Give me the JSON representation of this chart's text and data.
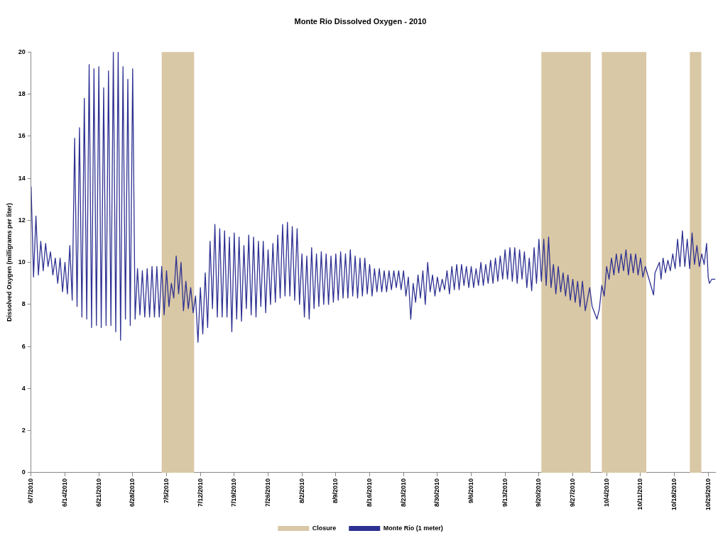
{
  "chart_data": {
    "type": "line",
    "title": "Monte Rio Dissolved Oxygen - 2010",
    "ylabel": "Dissolved Oxygen (milligrams per liter)",
    "xlim": [
      "2010-06-07",
      "2010-10-26T12:00"
    ],
    "xticks": [
      {
        "value": "2010-06-07",
        "label": "6/7/2010"
      },
      {
        "value": "2010-06-14",
        "label": "6/14/2010"
      },
      {
        "value": "2010-06-21",
        "label": "6/21/2010"
      },
      {
        "value": "2010-06-28",
        "label": "6/28/2010"
      },
      {
        "value": "2010-07-05",
        "label": "7/5/2010"
      },
      {
        "value": "2010-07-12",
        "label": "7/12/2010"
      },
      {
        "value": "2010-07-19",
        "label": "7/19/2010"
      },
      {
        "value": "2010-07-26",
        "label": "7/26/2010"
      },
      {
        "value": "2010-08-02",
        "label": "8/2/2010"
      },
      {
        "value": "2010-08-09",
        "label": "8/9/2010"
      },
      {
        "value": "2010-08-16",
        "label": "8/16/2010"
      },
      {
        "value": "2010-08-23",
        "label": "8/23/2010"
      },
      {
        "value": "2010-08-30",
        "label": "8/30/2010"
      },
      {
        "value": "2010-09-06",
        "label": "9/6/2010"
      },
      {
        "value": "2010-09-13",
        "label": "9/13/2010"
      },
      {
        "value": "2010-09-20",
        "label": "9/20/2010"
      },
      {
        "value": "2010-09-27",
        "label": "9/27/2010"
      },
      {
        "value": "2010-10-04",
        "label": "10/4/2010"
      },
      {
        "value": "2010-10-11",
        "label": "10/11/2010"
      },
      {
        "value": "2010-10-18",
        "label": "10/18/2010"
      },
      {
        "value": "2010-10-25",
        "label": "10/25/2010"
      }
    ],
    "ylim": [
      0,
      20
    ],
    "yticks": [
      0,
      2,
      4,
      6,
      8,
      10,
      12,
      14,
      16,
      18,
      20
    ],
    "grid": false,
    "legend": "bottom",
    "marker": "none",
    "line_style": "solid",
    "bands": [
      {
        "axis": "x",
        "from": "2010-07-04",
        "to": "2010-07-10T17:00",
        "label": "Closure",
        "color": "#d9c8a6"
      },
      {
        "axis": "x",
        "from": "2010-09-20T12:00",
        "to": "2010-09-30T17:00",
        "color": "#d9c8a6"
      },
      {
        "axis": "x",
        "from": "2010-10-03",
        "to": "2010-10-12T05:00",
        "color": "#d9c8a6"
      },
      {
        "axis": "x",
        "from": "2010-10-21T05:00",
        "to": "2010-10-23T14:00",
        "color": "#d9c8a6"
      }
    ],
    "x": [
      "2010-06-07",
      "2010-06-07T12:00",
      "2010-06-08",
      "2010-06-08T12:00",
      "2010-06-09",
      "2010-06-09T12:00",
      "2010-06-10",
      "2010-06-10T12:00",
      "2010-06-11",
      "2010-06-11T12:00",
      "2010-06-12",
      "2010-06-12T12:00",
      "2010-06-13",
      "2010-06-13T12:00",
      "2010-06-14",
      "2010-06-14T12:00",
      "2010-06-15",
      "2010-06-15T12:00",
      "2010-06-16",
      "2010-06-16T12:00",
      "2010-06-17",
      "2010-06-17T12:00",
      "2010-06-18",
      "2010-06-18T12:00",
      "2010-06-19",
      "2010-06-19T12:00",
      "2010-06-20",
      "2010-06-20T12:00",
      "2010-06-21",
      "2010-06-21T12:00",
      "2010-06-22",
      "2010-06-22T12:00",
      "2010-06-23",
      "2010-06-23T12:00",
      "2010-06-24",
      "2010-06-24T12:00",
      "2010-06-25",
      "2010-06-25T12:00",
      "2010-06-26",
      "2010-06-26T12:00",
      "2010-06-27",
      "2010-06-27T12:00",
      "2010-06-28",
      "2010-06-28T12:00",
      "2010-06-29",
      "2010-06-29T12:00",
      "2010-06-30",
      "2010-06-30T12:00",
      "2010-07-01",
      "2010-07-01T12:00",
      "2010-07-02",
      "2010-07-02T12:00",
      "2010-07-03",
      "2010-07-03T12:00",
      "2010-07-04",
      "2010-07-04T12:00",
      "2010-07-05",
      "2010-07-05T12:00",
      "2010-07-06",
      "2010-07-06T12:00",
      "2010-07-07",
      "2010-07-07T12:00",
      "2010-07-08",
      "2010-07-08T12:00",
      "2010-07-09",
      "2010-07-09T12:00",
      "2010-07-10",
      "2010-07-10T12:00",
      "2010-07-11",
      "2010-07-11T12:00",
      "2010-07-12",
      "2010-07-12T12:00",
      "2010-07-13",
      "2010-07-13T12:00",
      "2010-07-14",
      "2010-07-14T12:00",
      "2010-07-15",
      "2010-07-15T12:00",
      "2010-07-16",
      "2010-07-16T12:00",
      "2010-07-17",
      "2010-07-17T12:00",
      "2010-07-18",
      "2010-07-18T12:00",
      "2010-07-19",
      "2010-07-19T12:00",
      "2010-07-20",
      "2010-07-20T12:00",
      "2010-07-21",
      "2010-07-21T12:00",
      "2010-07-22",
      "2010-07-22T12:00",
      "2010-07-23",
      "2010-07-23T12:00",
      "2010-07-24",
      "2010-07-24T12:00",
      "2010-07-25",
      "2010-07-25T12:00",
      "2010-07-26",
      "2010-07-26T12:00",
      "2010-07-27",
      "2010-07-27T12:00",
      "2010-07-28",
      "2010-07-28T12:00",
      "2010-07-29",
      "2010-07-29T12:00",
      "2010-07-30",
      "2010-07-30T12:00",
      "2010-07-31",
      "2010-07-31T12:00",
      "2010-08-01",
      "2010-08-01T12:00",
      "2010-08-02",
      "2010-08-02T12:00",
      "2010-08-03",
      "2010-08-03T12:00",
      "2010-08-04",
      "2010-08-04T12:00",
      "2010-08-05",
      "2010-08-05T12:00",
      "2010-08-06",
      "2010-08-06T12:00",
      "2010-08-07",
      "2010-08-07T12:00",
      "2010-08-08",
      "2010-08-08T12:00",
      "2010-08-09",
      "2010-08-09T12:00",
      "2010-08-10",
      "2010-08-10T12:00",
      "2010-08-11",
      "2010-08-11T12:00",
      "2010-08-12",
      "2010-08-12T12:00",
      "2010-08-13",
      "2010-08-13T12:00",
      "2010-08-14",
      "2010-08-14T12:00",
      "2010-08-15",
      "2010-08-15T12:00",
      "2010-08-16",
      "2010-08-16T12:00",
      "2010-08-17",
      "2010-08-17T12:00",
      "2010-08-18",
      "2010-08-18T12:00",
      "2010-08-19",
      "2010-08-19T12:00",
      "2010-08-20",
      "2010-08-20T12:00",
      "2010-08-21",
      "2010-08-21T12:00",
      "2010-08-22",
      "2010-08-22T12:00",
      "2010-08-23",
      "2010-08-23T12:00",
      "2010-08-24",
      "2010-08-24T12:00",
      "2010-08-25",
      "2010-08-25T12:00",
      "2010-08-26",
      "2010-08-26T12:00",
      "2010-08-27",
      "2010-08-27T12:00",
      "2010-08-28",
      "2010-08-28T12:00",
      "2010-08-29",
      "2010-08-29T12:00",
      "2010-08-30",
      "2010-08-30T12:00",
      "2010-08-31",
      "2010-08-31T12:00",
      "2010-09-01",
      "2010-09-01T12:00",
      "2010-09-02",
      "2010-09-02T12:00",
      "2010-09-03",
      "2010-09-03T12:00",
      "2010-09-04",
      "2010-09-04T12:00",
      "2010-09-05",
      "2010-09-05T12:00",
      "2010-09-06",
      "2010-09-06T12:00",
      "2010-09-07",
      "2010-09-07T12:00",
      "2010-09-08",
      "2010-09-08T12:00",
      "2010-09-09",
      "2010-09-09T12:00",
      "2010-09-10",
      "2010-09-10T12:00",
      "2010-09-11",
      "2010-09-11T12:00",
      "2010-09-12",
      "2010-09-12T12:00",
      "2010-09-13",
      "2010-09-13T12:00",
      "2010-09-14",
      "2010-09-14T12:00",
      "2010-09-15",
      "2010-09-15T12:00",
      "2010-09-16",
      "2010-09-16T12:00",
      "2010-09-17",
      "2010-09-17T12:00",
      "2010-09-18",
      "2010-09-18T12:00",
      "2010-09-19",
      "2010-09-19T12:00",
      "2010-09-20",
      "2010-09-20T12:00",
      "2010-09-21",
      "2010-09-21T12:00",
      "2010-09-22",
      "2010-09-22T12:00",
      "2010-09-23",
      "2010-09-23T12:00",
      "2010-09-24",
      "2010-09-24T12:00",
      "2010-09-25",
      "2010-09-25T12:00",
      "2010-09-26",
      "2010-09-26T12:00",
      "2010-09-27",
      "2010-09-27T12:00",
      "2010-09-28",
      "2010-09-28T12:00",
      "2010-09-29",
      "2010-09-29T14:00",
      "2010-09-30T12:00",
      "2010-10-01",
      "2010-10-02",
      "2010-10-02T12:00",
      "2010-10-03",
      "2010-10-03T12:00",
      "2010-10-04",
      "2010-10-04T12:00",
      "2010-10-05",
      "2010-10-05T12:00",
      "2010-10-06",
      "2010-10-06T12:00",
      "2010-10-07",
      "2010-10-07T12:00",
      "2010-10-08",
      "2010-10-08T12:00",
      "2010-10-09",
      "2010-10-09T12:00",
      "2010-10-10",
      "2010-10-10T12:00",
      "2010-10-11",
      "2010-10-11T12:00",
      "2010-10-12",
      "2010-10-13T17:00",
      "2010-10-14",
      "2010-10-14T22:00",
      "2010-10-15T06:00",
      "2010-10-15T16:00",
      "2010-10-16T04:00",
      "2010-10-16T16:00",
      "2010-10-17T04:00",
      "2010-10-17T16:00",
      "2010-10-18T04:00",
      "2010-10-18T16:00",
      "2010-10-19T04:00",
      "2010-10-19T16:00",
      "2010-10-20T04:00",
      "2010-10-20T16:00",
      "2010-10-21T04:00",
      "2010-10-21T16:00",
      "2010-10-22T04:00",
      "2010-10-22T16:00",
      "2010-10-23T04:00",
      "2010-10-23T16:00",
      "2010-10-24T04:00",
      "2010-10-24T16:00",
      "2010-10-25",
      "2010-10-25T06:00",
      "2010-10-25T18:00",
      "2010-10-26T12:00"
    ],
    "series": [
      {
        "name": "Monte Rio (1 meter)",
        "color": "#2e3192",
        "values": [
          13.6,
          9.3,
          12.2,
          9.4,
          11.0,
          9.6,
          10.9,
          9.8,
          10.5,
          9.4,
          10.2,
          9.0,
          10.2,
          8.6,
          10.0,
          8.5,
          10.8,
          8.2,
          15.9,
          7.9,
          16.4,
          7.4,
          17.8,
          7.3,
          19.4,
          6.9,
          19.2,
          7.0,
          19.3,
          6.9,
          18.3,
          7.0,
          19.1,
          7.0,
          20,
          6.7,
          20,
          6.3,
          19.3,
          7.3,
          18.7,
          7.0,
          19.2,
          7.3,
          9.7,
          7.5,
          9.6,
          7.4,
          9.7,
          7.4,
          9.8,
          7.4,
          9.8,
          7.4,
          9.8,
          7.5,
          9.6,
          7.9,
          9.0,
          8.3,
          10.3,
          8.5,
          10.0,
          7.7,
          9.1,
          7.8,
          8.8,
          7.6,
          8.4,
          6.2,
          8.8,
          6.6,
          9.5,
          6.9,
          11.0,
          7.8,
          11.8,
          7.4,
          11.6,
          7.4,
          11.5,
          7.4,
          11.2,
          6.7,
          11.4,
          7.3,
          11.2,
          7.2,
          10.8,
          7.8,
          11.3,
          7.5,
          11.2,
          7.4,
          11.0,
          7.9,
          11.0,
          7.6,
          10.6,
          8.0,
          10.9,
          8.1,
          11.3,
          8.3,
          11.8,
          8.4,
          11.9,
          8.4,
          11.7,
          8.2,
          11.6,
          8.0,
          10.4,
          7.4,
          10.3,
          7.3,
          10.7,
          7.8,
          10.4,
          7.9,
          10.5,
          8.0,
          10.4,
          8.0,
          10.3,
          8.1,
          10.4,
          8.2,
          10.5,
          8.3,
          10.4,
          8.3,
          10.6,
          8.4,
          10.3,
          8.3,
          10.2,
          8.4,
          10.2,
          8.5,
          9.9,
          8.4,
          9.7,
          8.6,
          9.7,
          8.6,
          9.6,
          8.6,
          9.6,
          8.7,
          9.6,
          8.8,
          9.6,
          8.7,
          9.6,
          8.4,
          9.3,
          7.3,
          9.0,
          8.1,
          9.4,
          8.3,
          9.6,
          8.0,
          10.0,
          8.6,
          9.4,
          8.4,
          9.3,
          8.6,
          9.2,
          8.7,
          9.6,
          8.5,
          9.8,
          8.7,
          9.9,
          8.7,
          9.9,
          8.9,
          9.8,
          8.8,
          9.8,
          8.8,
          9.7,
          8.9,
          10.0,
          8.9,
          9.9,
          9.0,
          10.1,
          9.0,
          10.2,
          9.1,
          10.3,
          9.2,
          10.6,
          9.2,
          10.7,
          9.1,
          10.7,
          9.0,
          10.6,
          9.2,
          10.5,
          8.8,
          10.2,
          8.65,
          10.7,
          9.0,
          11.1,
          9.1,
          11.1,
          8.9,
          11.2,
          8.8,
          9.9,
          8.5,
          9.8,
          8.6,
          9.5,
          8.4,
          9.4,
          8.2,
          9.2,
          8.1,
          9.1,
          7.9,
          9.1,
          7.7,
          8.8,
          7.9,
          7.3,
          7.8,
          8.9,
          8.4,
          9.8,
          9.2,
          10.2,
          9.4,
          10.4,
          9.5,
          10.4,
          9.6,
          10.6,
          9.4,
          10.4,
          9.5,
          10.4,
          9.4,
          10.2,
          9.3,
          9.8,
          8.45,
          9.5,
          10.0,
          9.2,
          10.2,
          9.5,
          10.1,
          9.6,
          10.4,
          9.7,
          11.1,
          9.8,
          11.5,
          9.8,
          11.1,
          9.7,
          11.4,
          9.9,
          10.8,
          9.8,
          10.4,
          9.9,
          10.9,
          9.3,
          9.0,
          9.2,
          9.2
        ]
      }
    ]
  }
}
